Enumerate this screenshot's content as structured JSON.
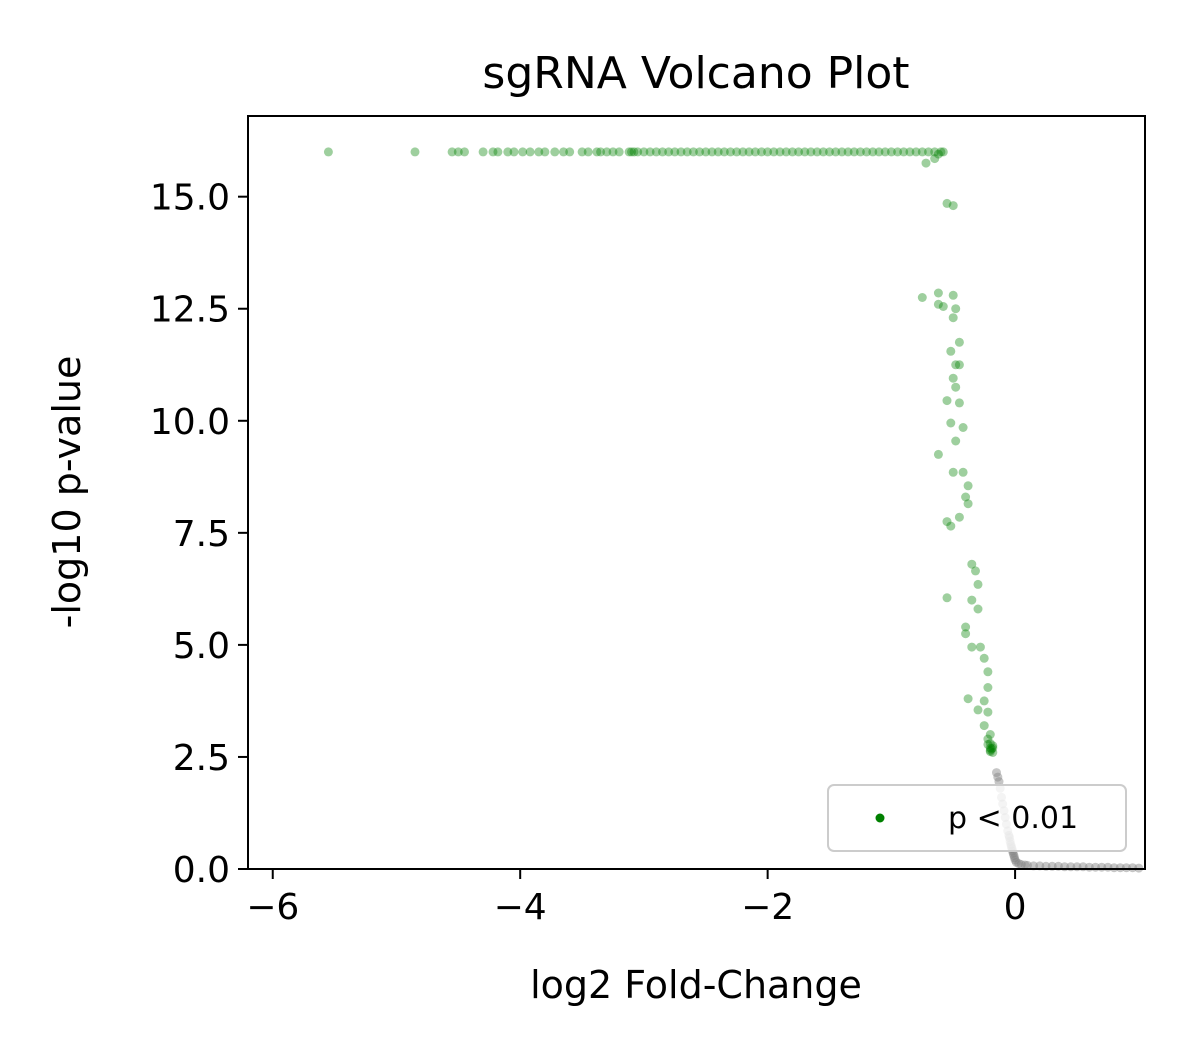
{
  "chart_data": {
    "type": "scatter",
    "title": "sgRNA Volcano Plot",
    "xlabel": "log2 Fold-Change",
    "ylabel": "-log10 p-value",
    "xlim": [
      -6.2,
      1.05
    ],
    "ylim": [
      0,
      16.8
    ],
    "x_ticks": [
      {
        "value": -6,
        "label": "−6"
      },
      {
        "value": -4,
        "label": "−4"
      },
      {
        "value": -2,
        "label": "−2"
      },
      {
        "value": 0,
        "label": "0"
      }
    ],
    "y_ticks": [
      {
        "value": 0,
        "label": "0.0"
      },
      {
        "value": 2.5,
        "label": "2.5"
      },
      {
        "value": 5,
        "label": "5.0"
      },
      {
        "value": 7.5,
        "label": "7.5"
      },
      {
        "value": 10,
        "label": "10.0"
      },
      {
        "value": 12.5,
        "label": "12.5"
      },
      {
        "value": 15,
        "label": "15.0"
      }
    ],
    "grid": false,
    "legend": {
      "position": "bottom-right",
      "entries": [
        "p < 0.01"
      ]
    },
    "colors": {
      "significant": "#008000",
      "nonsignificant": "#808080"
    },
    "series": [
      {
        "name": "p < 0.01",
        "color": "#008000",
        "x": [
          -5.55,
          -4.85,
          -4.55,
          -4.5,
          -4.45,
          -4.3,
          -4.22,
          -4.18,
          -4.1,
          -4.05,
          -3.98,
          -3.92,
          -3.85,
          -3.8,
          -3.72,
          -3.65,
          -3.6,
          -3.5,
          -3.45,
          -3.38,
          -3.35,
          -3.3,
          -3.25,
          -3.2,
          -3.12,
          -3.1,
          -3.08,
          -3.05,
          -3.0,
          -2.95,
          -2.9,
          -2.85,
          -2.8,
          -2.75,
          -2.7,
          -2.65,
          -2.6,
          -2.55,
          -2.5,
          -2.45,
          -2.4,
          -2.35,
          -2.3,
          -2.25,
          -2.2,
          -2.15,
          -2.1,
          -2.05,
          -2.0,
          -1.95,
          -1.9,
          -1.85,
          -1.8,
          -1.75,
          -1.7,
          -1.65,
          -1.6,
          -1.55,
          -1.5,
          -1.45,
          -1.4,
          -1.35,
          -1.3,
          -1.25,
          -1.2,
          -1.15,
          -1.1,
          -1.05,
          -1.0,
          -0.95,
          -0.9,
          -0.85,
          -0.8,
          -0.75,
          -0.7,
          -0.65,
          -0.6,
          -0.58,
          -0.72,
          -0.65,
          -0.62,
          -0.55,
          -0.5,
          -0.75,
          -0.62,
          -0.62,
          -0.58,
          -0.5,
          -0.48,
          -0.5,
          -0.45,
          -0.52,
          -0.48,
          -0.45,
          -0.5,
          -0.48,
          -0.55,
          -0.45,
          -0.52,
          -0.42,
          -0.48,
          -0.62,
          -0.5,
          -0.42,
          -0.38,
          -0.4,
          -0.38,
          -0.45,
          -0.55,
          -0.52,
          -0.35,
          -0.32,
          -0.3,
          -0.35,
          -0.55,
          -0.3,
          -0.4,
          -0.4,
          -0.35,
          -0.28,
          -0.25,
          -0.22,
          -0.22,
          -0.25,
          -0.38,
          -0.3,
          -0.22,
          -0.25,
          -0.2,
          -0.22,
          -0.2,
          -0.18,
          -0.2,
          -0.18,
          -0.2,
          -0.18,
          -0.2,
          -0.22,
          -0.19
        ],
        "y": [
          16,
          16,
          16,
          16,
          16,
          16,
          16,
          16,
          16,
          16,
          16,
          16,
          16,
          16,
          16,
          16,
          16,
          16,
          16,
          16,
          16,
          16,
          16,
          16,
          16,
          16,
          16,
          16,
          16,
          16,
          16,
          16,
          16,
          16,
          16,
          16,
          16,
          16,
          16,
          16,
          16,
          16,
          16,
          16,
          16,
          16,
          16,
          16,
          16,
          16,
          16,
          16,
          16,
          16,
          16,
          16,
          16,
          16,
          16,
          16,
          16,
          16,
          16,
          16,
          16,
          16,
          16,
          16,
          16,
          16,
          16,
          16,
          16,
          16,
          16,
          16,
          16,
          16,
          15.75,
          15.85,
          15.95,
          14.85,
          14.8,
          12.75,
          12.85,
          12.6,
          12.55,
          12.8,
          12.5,
          12.3,
          11.75,
          11.55,
          11.25,
          11.25,
          10.95,
          10.75,
          10.45,
          10.4,
          9.95,
          9.85,
          9.55,
          9.25,
          8.85,
          8.85,
          8.55,
          8.3,
          8.15,
          7.85,
          7.75,
          7.65,
          6.8,
          6.65,
          6.35,
          6.0,
          6.05,
          5.8,
          5.4,
          5.25,
          4.95,
          4.95,
          4.7,
          4.4,
          4.05,
          3.75,
          3.8,
          3.55,
          3.5,
          3.2,
          3.0,
          2.9,
          2.8,
          2.7,
          2.65,
          2.75,
          2.7,
          2.6,
          2.62,
          2.78,
          2.68
        ]
      },
      {
        "name": "",
        "color": "#808080",
        "x": [
          -0.15,
          -0.14,
          -0.13,
          -0.12,
          -0.11,
          -0.1,
          -0.09,
          -0.08,
          -0.07,
          -0.06,
          -0.05,
          -0.045,
          -0.04,
          -0.035,
          -0.03,
          -0.025,
          -0.02,
          -0.015,
          -0.01,
          -0.005,
          0.0,
          0.01,
          0.03,
          0.05,
          0.08,
          0.1,
          0.15,
          0.2,
          0.25,
          0.3,
          0.35,
          0.4,
          0.45,
          0.5,
          0.55,
          0.6,
          0.65,
          0.7,
          0.75,
          0.8,
          0.85,
          0.9,
          0.95,
          1.0
        ],
        "y": [
          2.15,
          2.05,
          1.95,
          1.8,
          1.6,
          1.45,
          1.3,
          1.15,
          1.0,
          0.85,
          0.75,
          0.7,
          0.62,
          0.55,
          0.5,
          0.45,
          0.4,
          0.35,
          0.3,
          0.25,
          0.2,
          0.15,
          0.12,
          0.1,
          0.09,
          0.08,
          0.07,
          0.07,
          0.06,
          0.06,
          0.06,
          0.05,
          0.05,
          0.05,
          0.05,
          0.04,
          0.04,
          0.04,
          0.04,
          0.03,
          0.03,
          0.03,
          0.03,
          0.02
        ]
      }
    ]
  }
}
